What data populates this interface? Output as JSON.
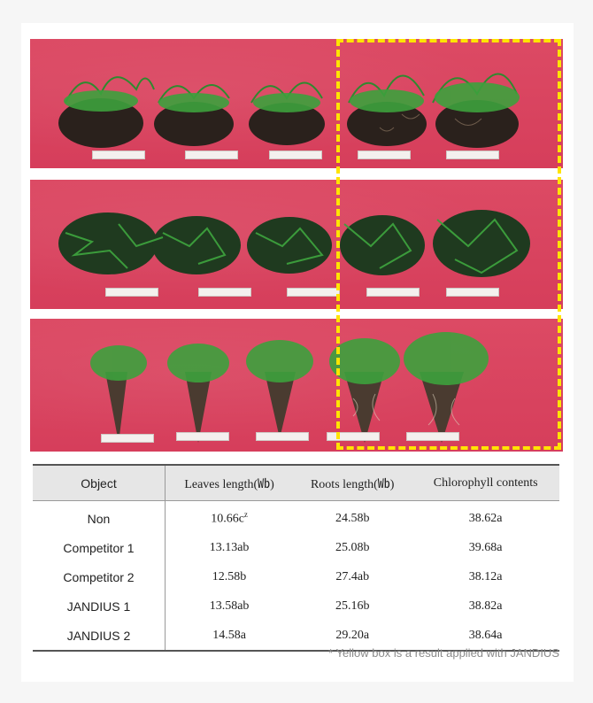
{
  "table": {
    "headers": [
      "Object",
      "Leaves length(㏝)",
      "Roots length(㏝)",
      "Chlorophyll contents"
    ],
    "rows": [
      {
        "object": "Non",
        "leaves": "10.66c",
        "leaves_sup": "z",
        "roots": "24.58b",
        "chlorophyll": "38.62a"
      },
      {
        "object": "Competitor 1",
        "leaves": "13.13ab",
        "roots": "25.08b",
        "chlorophyll": "39.68a"
      },
      {
        "object": "Competitor 2",
        "leaves": "12.58b",
        "roots": "27.4ab",
        "chlorophyll": "38.12a"
      },
      {
        "object": "JANDIUS 1",
        "leaves": "13.58ab",
        "roots": "25.16b",
        "chlorophyll": "38.82a"
      },
      {
        "object": "JANDIUS 2",
        "leaves": "14.58a",
        "roots": "29.20a",
        "chlorophyll": "38.64a"
      }
    ]
  },
  "note": "* Yellow box is a result applied with JANDIUS",
  "colors": {
    "highlight": "#ffe400",
    "mat": "#d9445f",
    "grass": "#2f7a2f",
    "soil": "#2a211c"
  }
}
